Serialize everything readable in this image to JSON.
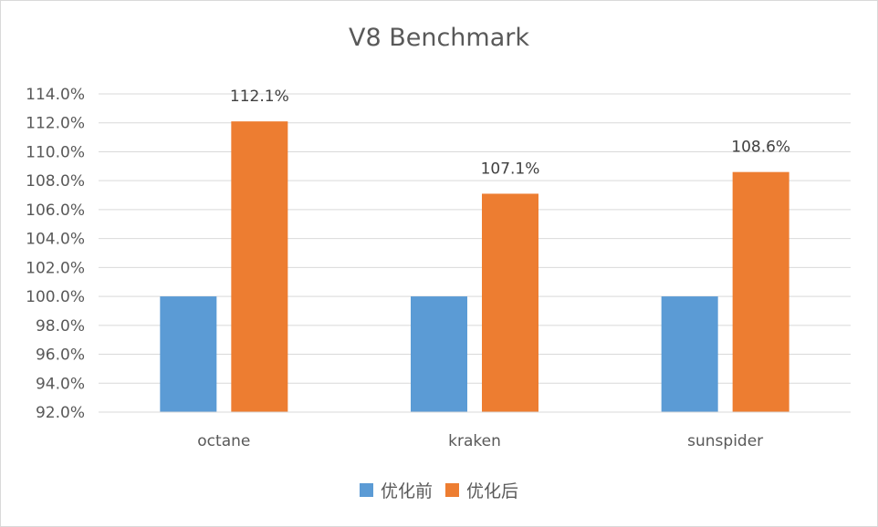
{
  "chart_data": {
    "type": "bar",
    "title": "V8 Benchmark",
    "categories": [
      "octane",
      "kraken",
      "sunspider"
    ],
    "series": [
      {
        "name": "优化前",
        "color": "#5b9bd5",
        "values": [
          100.0,
          100.0,
          100.0
        ],
        "labels": [
          "",
          "",
          ""
        ]
      },
      {
        "name": "优化后",
        "color": "#ed7d31",
        "values": [
          112.1,
          107.1,
          108.6
        ],
        "labels": [
          "112.1%",
          "107.1%",
          "108.6%"
        ]
      }
    ],
    "ylim": [
      92,
      114
    ],
    "ytick_step": 2,
    "ytick_labels": [
      "92.0%",
      "94.0%",
      "96.0%",
      "98.0%",
      "100.0%",
      "102.0%",
      "104.0%",
      "106.0%",
      "108.0%",
      "110.0%",
      "112.0%",
      "114.0%"
    ],
    "xlabel": "",
    "ylabel": "",
    "grid": true,
    "legend_position": "bottom",
    "gridline_color": "#d9d9d9"
  }
}
